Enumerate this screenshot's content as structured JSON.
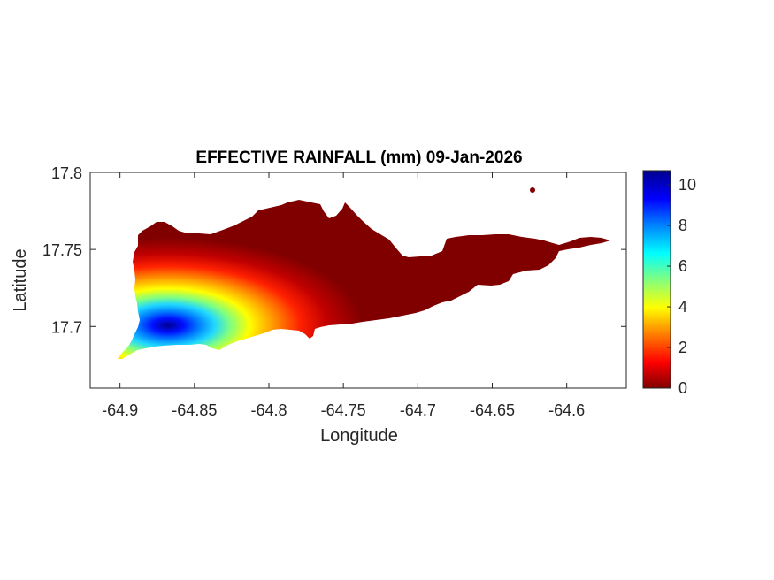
{
  "chart_data": {
    "type": "heatmap",
    "title": "EFFECTIVE RAINFALL (mm) 09-Jan-2026",
    "xlabel": "Longitude",
    "ylabel": "Latitude",
    "xlim": [
      -64.92,
      -64.56
    ],
    "ylim": [
      17.66,
      17.8
    ],
    "xticks": [
      -64.9,
      -64.85,
      -64.8,
      -64.75,
      -64.7,
      -64.65,
      -64.6
    ],
    "yticks": [
      17.7,
      17.75,
      17.8
    ],
    "xtick_labels": [
      "-64.9",
      "-64.85",
      "-64.8",
      "-64.75",
      "-64.7",
      "-64.65",
      "-64.6"
    ],
    "ytick_labels": [
      "17.7",
      "17.75",
      "17.8"
    ],
    "colormap": "jet",
    "colorbar": {
      "range": [
        0,
        10.7
      ],
      "ticks": [
        0,
        2,
        4,
        6,
        8,
        10
      ],
      "tick_labels": [
        "0",
        "2",
        "4",
        "6",
        "8",
        "10"
      ],
      "placement": "right"
    },
    "hotspot": {
      "lon": -64.868,
      "lat": 17.701,
      "value": 10.5
    },
    "field_description": "Maximum rainfall in southwest corner near (-64.87, 17.70), decreasing eastward and northward to ~0 mm across the central and eastern island."
  }
}
